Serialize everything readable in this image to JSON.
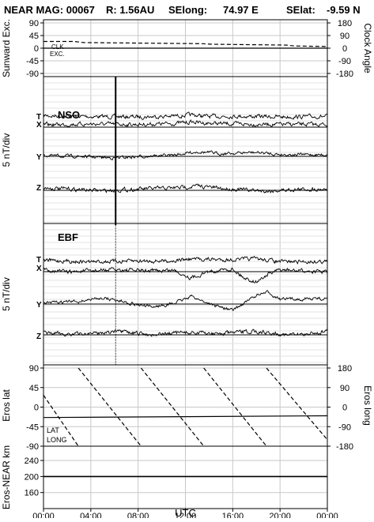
{
  "header": {
    "mission": "NEAR MAG: 00067",
    "range": "R: 1.56AU",
    "selong_label": "SElong:",
    "selong_value": "74.97 E",
    "selat_label": "SElat:",
    "selat_value": "-9.59 N"
  },
  "colors": {
    "ink": "#000000",
    "grid": "#c8c8c8",
    "background": "#ffffff"
  },
  "chart_data": {
    "type": "line",
    "x_ticks": [
      "00:00",
      "04:00",
      "08:00",
      "12:00",
      "16:00",
      "20:00",
      "00:00"
    ],
    "x_range_hours": [
      0,
      24
    ],
    "xlabel": "UTC",
    "grid": true,
    "event_marker_hour": 6.1,
    "panels": [
      {
        "id": "sunward",
        "ylabel_left": "Sunward Exc.",
        "ylabel_right": "Clock Angle",
        "left_ticks": [
          "90",
          "45",
          "0",
          "-45",
          "-90"
        ],
        "right_ticks": [
          "180",
          "90",
          "0",
          "-90",
          "-180"
        ],
        "ylim_left": [
          -90,
          90
        ],
        "ylim_right": [
          -180,
          180
        ],
        "annotations": [
          "CLK",
          "EXC."
        ],
        "series": [
          {
            "name": "CLK",
            "axis": "right",
            "style": "dashed",
            "x": [
              0,
              2.6,
              3.4,
              13.4,
              14.2,
              20.6,
              21.2,
              24
            ],
            "y": [
              48,
              48,
              40,
              32,
              28,
              22,
              16,
              12
            ]
          },
          {
            "name": "EXC.",
            "axis": "left",
            "style": "solid",
            "x": [
              0,
              24
            ],
            "y": [
              0,
              0
            ]
          }
        ]
      },
      {
        "id": "nso",
        "label": "NSO",
        "ylabel": "5 nT/div",
        "trace_labels": [
          "T",
          "X",
          "Y",
          "Z"
        ],
        "series": [
          {
            "name": "T",
            "x": [
              0,
              4,
              8,
              11,
              12.5,
              14,
              16,
              20,
              24
            ],
            "y": [
              1.3,
              1.1,
              1.0,
              1.2,
              1.5,
              1.1,
              1.2,
              1.0,
              1.1
            ]
          },
          {
            "name": "X",
            "x": [
              0,
              4,
              8,
              11,
              12.5,
              14,
              16,
              20,
              24
            ],
            "y": [
              0.2,
              0.4,
              0.3,
              0.5,
              0.9,
              0.6,
              0.4,
              0.3,
              0.3
            ]
          },
          {
            "name": "Y",
            "x": [
              0,
              3,
              6,
              9,
              11,
              13,
              15,
              18,
              20,
              24
            ],
            "y": [
              -0.2,
              -0.4,
              -0.8,
              -0.3,
              -0.1,
              0.8,
              0.3,
              0.6,
              0.1,
              0.0
            ]
          },
          {
            "name": "Z",
            "x": [
              0,
              3,
              5,
              8,
              11,
              13,
              15,
              19,
              21,
              24
            ],
            "y": [
              0.2,
              -0.2,
              -0.5,
              -0.1,
              0.2,
              0.7,
              0.1,
              -0.6,
              -0.2,
              0.0
            ]
          }
        ]
      },
      {
        "id": "ebf",
        "label": "EBF",
        "ylabel": "5 nT/div",
        "trace_labels": [
          "T",
          "X",
          "Y",
          "Z"
        ],
        "series": [
          {
            "name": "T",
            "x": [
              0,
              4,
              8,
              11,
              12.5,
              14,
              16,
              18,
              20,
              24
            ],
            "y": [
              1.5,
              1.1,
              1.3,
              1.4,
              1.8,
              1.7,
              1.6,
              1.9,
              1.1,
              1.2
            ]
          },
          {
            "name": "X",
            "x": [
              0,
              2,
              6,
              9,
              11,
              12.5,
              14,
              16,
              17,
              18,
              19,
              20,
              24
            ],
            "y": [
              0.2,
              -0.5,
              0.1,
              -0.2,
              0.0,
              -2.0,
              -0.3,
              0.3,
              -2.0,
              -3.0,
              -1.0,
              0.0,
              -0.5
            ]
          },
          {
            "name": "Y",
            "x": [
              0,
              3,
              5,
              7,
              9,
              11,
              12.5,
              14,
              16,
              18,
              19,
              20,
              24
            ],
            "y": [
              -0.2,
              0.3,
              1.2,
              0.1,
              -1.2,
              -0.3,
              1.6,
              -0.3,
              -2.0,
              1.8,
              2.6,
              0.8,
              1.0
            ]
          },
          {
            "name": "Z",
            "x": [
              0,
              3,
              6,
              9,
              12,
              15,
              18,
              21,
              24
            ],
            "y": [
              0.0,
              -0.2,
              0.4,
              -0.3,
              0.2,
              -0.1,
              0.5,
              -0.5,
              0.4
            ]
          }
        ]
      },
      {
        "id": "eros",
        "ylabel_left": "Eros lat",
        "ylabel_right": "Eros long",
        "left_ticks": [
          "90",
          "45",
          "0",
          "-45",
          "-90"
        ],
        "right_ticks": [
          "180",
          "90",
          "0",
          "-90",
          "-180"
        ],
        "ylim_left": [
          -90,
          90
        ],
        "ylim_right": [
          -180,
          180
        ],
        "annotations": [
          "LAT",
          "LONG"
        ],
        "series": [
          {
            "name": "LAT",
            "axis": "left",
            "style": "solid",
            "x": [
              0,
              24
            ],
            "y": [
              -24,
              -20
            ]
          },
          {
            "name": "LONG",
            "axis": "right",
            "style": "dashed",
            "x": [
              0,
              2.95,
              2.95,
              8.25,
              8.25,
              13.55,
              13.55,
              18.85,
              18.85,
              24
            ],
            "y": [
              55,
              -180,
              180,
              -180,
              180,
              -180,
              180,
              -180,
              180,
              -150
            ]
          }
        ]
      },
      {
        "id": "range",
        "ylabel": "Eros-NEAR km",
        "left_ticks": [
          "240",
          "200",
          "160"
        ],
        "ylim": [
          120,
          250
        ],
        "series": [
          {
            "name": "Eros-NEAR km",
            "x": [
              0,
              24
            ],
            "y": [
              200,
              200
            ]
          }
        ]
      }
    ]
  }
}
